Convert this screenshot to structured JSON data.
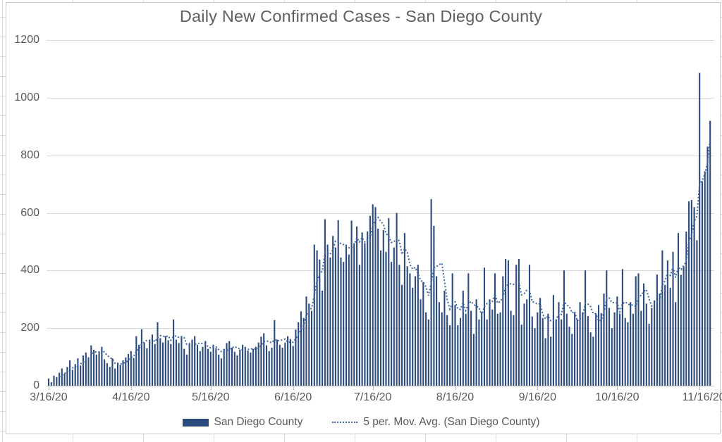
{
  "chart_data": {
    "type": "bar",
    "title": "Daily New Confirmed Cases - San Diego County",
    "xlabel": "",
    "ylabel": "",
    "ylim": [
      0,
      1200
    ],
    "y_ticks": [
      0,
      200,
      400,
      600,
      800,
      1000,
      1200
    ],
    "grid": "horizontal",
    "legend_position": "bottom",
    "x_start_label": "3/16/20",
    "x_ticks": [
      {
        "label": "3/16/20",
        "day": 0
      },
      {
        "label": "4/16/20",
        "day": 31
      },
      {
        "label": "5/16/20",
        "day": 61
      },
      {
        "label": "6/16/20",
        "day": 92
      },
      {
        "label": "7/16/20",
        "day": 122
      },
      {
        "label": "8/16/20",
        "day": 153
      },
      {
        "label": "9/16/20",
        "day": 184
      },
      {
        "label": "10/16/20",
        "day": 214
      },
      {
        "label": "11/16/20",
        "day": 245
      }
    ],
    "series": [
      {
        "name": "San Diego County",
        "type": "bar",
        "color": "#2B4A7E",
        "values": [
          25,
          12,
          35,
          30,
          45,
          60,
          42,
          65,
          88,
          55,
          75,
          95,
          70,
          105,
          115,
          98,
          140,
          125,
          108,
          118,
          135,
          92,
          78,
          65,
          95,
          60,
          80,
          72,
          88,
          98,
          110,
          120,
          96,
          172,
          142,
          196,
          150,
          130,
          160,
          178,
          145,
          220,
          165,
          150,
          172,
          158,
          145,
          230,
          160,
          148,
          170,
          128,
          108,
          148,
          160,
          172,
          142,
          120,
          135,
          155,
          128,
          118,
          142,
          130,
          108,
          95,
          128,
          148,
          155,
          132,
          118,
          105,
          125,
          142,
          135,
          122,
          115,
          128,
          135,
          150,
          170,
          182,
          140,
          120,
          132,
          228,
          160,
          142,
          132,
          150,
          172,
          162,
          138,
          195,
          220,
          258,
          235,
          310,
          285,
          260,
          490,
          470,
          438,
          330,
          578,
          490,
          445,
          520,
          480,
          575,
          445,
          430,
          490,
          455,
          573,
          495,
          553,
          420,
          532,
          495,
          536,
          590,
          630,
          620,
          545,
          470,
          540,
          465,
          582,
          430,
          480,
          600,
          420,
          350,
          530,
          415,
          390,
          340,
          380,
          420,
          300,
          360,
          255,
          230,
          648,
          555,
          380,
          290,
          255,
          330,
          245,
          210,
          390,
          280,
          210,
          235,
          330,
          250,
          390,
          260,
          180,
          300,
          230,
          255,
          410,
          230,
          300,
          265,
          390,
          250,
          255,
          380,
          440,
          435,
          260,
          245,
          420,
          440,
          212,
          285,
          300,
          420,
          240,
          200,
          255,
          305,
          235,
          165,
          250,
          170,
          315,
          230,
          290,
          230,
          400,
          250,
          205,
          180,
          255,
          230,
          290,
          255,
          400,
          242,
          185,
          170,
          250,
          280,
          252,
          320,
          400,
          270,
          200,
          255,
          310,
          250,
          405,
          235,
          220,
          290,
          250,
          380,
          390,
          260,
          355,
          285,
          215,
          270,
          296,
          386,
          320,
          470,
          350,
          435,
          340,
          465,
          290,
          530,
          385,
          415,
          535,
          640,
          645,
          620,
          505,
          1086,
          710,
          745,
          830,
          920
        ]
      },
      {
        "name": "5 per. Mov. Avg. (San Diego County)",
        "type": "line",
        "style": "dotted",
        "color": "#3F66A6",
        "derived_from": "San Diego County",
        "moving_average_period": 5
      }
    ]
  },
  "legend": {
    "items": [
      {
        "label": "San Diego County",
        "marker": "solid-bar",
        "color": "#2B4A7E"
      },
      {
        "label": "5 per. Mov. Avg. (San Diego County)",
        "marker": "dotted-line",
        "color": "#3F66A6"
      }
    ]
  }
}
